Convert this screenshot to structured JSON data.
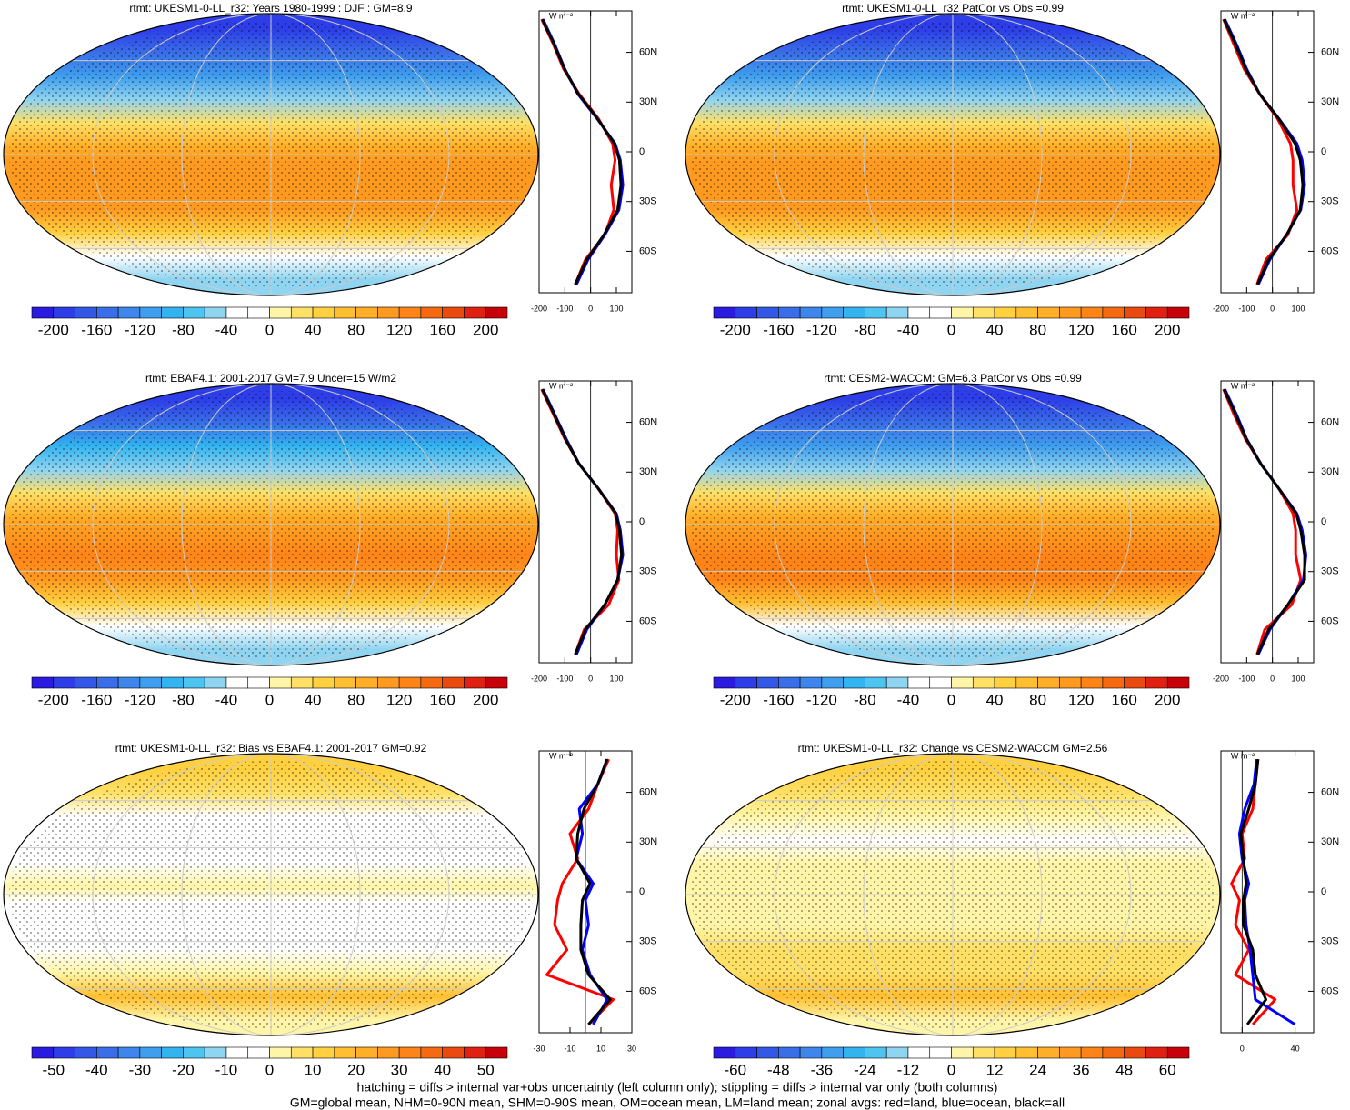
{
  "chart_data": [
    {
      "type": "zonal_map",
      "title": "rtmt: UKESM1-0-LL_r32: Years 1980-1999 : DJF : GM=8.9",
      "colorbar_ticks": [
        -200,
        -160,
        -120,
        -80,
        -40,
        0,
        40,
        80,
        120,
        160,
        200
      ],
      "colorbar_colors": [
        "#2b1be0",
        "#2d3ee8",
        "#3357e6",
        "#3a6ee8",
        "#3f86ec",
        "#3f9eee",
        "#33b4f0",
        "#4ec4f0",
        "#8fd4f0",
        "#ffffff",
        "#ffffff",
        "#fff5a8",
        "#ffe066",
        "#ffd040",
        "#ffbf30",
        "#ffae28",
        "#ff9a20",
        "#ff8418",
        "#f56a10",
        "#ea4a10",
        "#e02010",
        "#c8000a"
      ],
      "unit": "W m⁻²",
      "latitudes": [
        80,
        65,
        50,
        35,
        20,
        5,
        -5,
        -20,
        -35,
        -50,
        -65,
        -80
      ],
      "xlim": [
        -200,
        160
      ],
      "xticks": [
        -200,
        -100,
        0,
        100
      ],
      "ylim": [
        -85,
        85
      ],
      "yticks": [
        {
          "value": 60,
          "label": "60N"
        },
        {
          "value": 30,
          "label": "30N"
        },
        0,
        {
          "value": -30,
          "label": "30S"
        },
        {
          "value": -60,
          "label": "60S"
        }
      ],
      "series": [
        {
          "name": "land",
          "color": "#ff0000",
          "values": [
            -190,
            -145,
            -105,
            -45,
            30,
            85,
            95,
            80,
            90,
            55,
            -20,
            -60
          ]
        },
        {
          "name": "ocean",
          "color": "#0000ff",
          "values": [
            -185,
            -140,
            -100,
            -50,
            25,
            95,
            115,
            125,
            110,
            55,
            -10,
            -55
          ]
        },
        {
          "name": "all",
          "color": "#000000",
          "values": [
            -188,
            -142,
            -102,
            -48,
            27,
            92,
            112,
            118,
            105,
            52,
            -15,
            -60
          ]
        }
      ]
    },
    {
      "type": "zonal_map",
      "title": "rtmt: UKESM1-0-LL_r32 PatCor vs Obs =0.99",
      "colorbar_ticks": [
        -200,
        -160,
        -120,
        -80,
        -40,
        0,
        40,
        80,
        120,
        160,
        200
      ],
      "colorbar_colors": [
        "#2b1be0",
        "#2d3ee8",
        "#3357e6",
        "#3a6ee8",
        "#3f86ec",
        "#3f9eee",
        "#33b4f0",
        "#4ec4f0",
        "#8fd4f0",
        "#ffffff",
        "#ffffff",
        "#fff5a8",
        "#ffe066",
        "#ffd040",
        "#ffbf30",
        "#ffae28",
        "#ff9a20",
        "#ff8418",
        "#f56a10",
        "#ea4a10",
        "#e02010",
        "#c8000a"
      ],
      "unit": "W m⁻²",
      "latitudes": [
        80,
        65,
        50,
        35,
        20,
        5,
        -5,
        -20,
        -35,
        -50,
        -65,
        -80
      ],
      "xlim": [
        -200,
        160
      ],
      "xticks": [
        -200,
        -100,
        0,
        100
      ],
      "ylim": [
        -85,
        85
      ],
      "yticks": [
        {
          "value": 60,
          "label": "60N"
        },
        {
          "value": 30,
          "label": "30N"
        },
        0,
        {
          "value": -30,
          "label": "30S"
        },
        {
          "value": -60,
          "label": "60S"
        }
      ],
      "series": [
        {
          "name": "land",
          "color": "#ff0000",
          "values": [
            -190,
            -150,
            -110,
            -50,
            20,
            70,
            80,
            80,
            95,
            60,
            -25,
            -60
          ]
        },
        {
          "name": "ocean",
          "color": "#0000ff",
          "values": [
            -185,
            -140,
            -100,
            -50,
            25,
            95,
            115,
            125,
            110,
            55,
            -10,
            -55
          ]
        },
        {
          "name": "all",
          "color": "#000000",
          "values": [
            -188,
            -144,
            -104,
            -50,
            24,
            88,
            108,
            118,
            108,
            55,
            -15,
            -58
          ]
        }
      ]
    },
    {
      "type": "zonal_map",
      "title": "rtmt: EBAF4.1: 2001-2017 GM=7.9 Uncer=15 W/m2",
      "colorbar_ticks": [
        -200,
        -160,
        -120,
        -80,
        -40,
        0,
        40,
        80,
        120,
        160,
        200
      ],
      "colorbar_colors": [
        "#2b1be0",
        "#2d3ee8",
        "#3357e6",
        "#3a6ee8",
        "#3f86ec",
        "#3f9eee",
        "#33b4f0",
        "#4ec4f0",
        "#8fd4f0",
        "#ffffff",
        "#ffffff",
        "#fff5a8",
        "#ffe066",
        "#ffd040",
        "#ffbf30",
        "#ffae28",
        "#ff9a20",
        "#ff8418",
        "#f56a10",
        "#ea4a10",
        "#e02010",
        "#c8000a"
      ],
      "unit": "W m⁻²",
      "latitudes": [
        80,
        65,
        50,
        35,
        20,
        5,
        -5,
        -20,
        -35,
        -50,
        -65,
        -80
      ],
      "xlim": [
        -200,
        160
      ],
      "xticks": [
        -200,
        -100,
        0,
        100
      ],
      "ylim": [
        -85,
        85
      ],
      "yticks": [
        {
          "value": 60,
          "label": "60N"
        },
        {
          "value": 30,
          "label": "30N"
        },
        0,
        {
          "value": -30,
          "label": "30S"
        },
        {
          "value": -60,
          "label": "60S"
        }
      ],
      "series": [
        {
          "name": "land",
          "color": "#ff0000",
          "values": [
            -190,
            -145,
            -100,
            -45,
            30,
            95,
            105,
            100,
            110,
            70,
            -25,
            -60
          ]
        },
        {
          "name": "ocean",
          "color": "#0000ff",
          "values": [
            -185,
            -140,
            -95,
            -45,
            30,
            100,
            115,
            125,
            105,
            55,
            -15,
            -55
          ]
        },
        {
          "name": "all",
          "color": "#000000",
          "values": [
            -188,
            -142,
            -98,
            -45,
            30,
            98,
            112,
            120,
            105,
            55,
            -20,
            -60
          ]
        }
      ]
    },
    {
      "type": "zonal_map",
      "title": "rtmt: CESM2-WACCM: GM=6.3 PatCor vs Obs =0.99",
      "colorbar_ticks": [
        -200,
        -160,
        -120,
        -80,
        -40,
        0,
        40,
        80,
        120,
        160,
        200
      ],
      "colorbar_colors": [
        "#2b1be0",
        "#2d3ee8",
        "#3357e6",
        "#3a6ee8",
        "#3f86ec",
        "#3f9eee",
        "#33b4f0",
        "#4ec4f0",
        "#8fd4f0",
        "#ffffff",
        "#ffffff",
        "#fff5a8",
        "#ffe066",
        "#ffd040",
        "#ffbf30",
        "#ffae28",
        "#ff9a20",
        "#ff8418",
        "#f56a10",
        "#ea4a10",
        "#e02010",
        "#c8000a"
      ],
      "unit": "W m⁻²",
      "latitudes": [
        80,
        65,
        50,
        35,
        20,
        5,
        -5,
        -20,
        -35,
        -50,
        -65,
        -80
      ],
      "xlim": [
        -200,
        160
      ],
      "xticks": [
        -200,
        -100,
        0,
        100
      ],
      "ylim": [
        -85,
        85
      ],
      "yticks": [
        {
          "value": 60,
          "label": "60N"
        },
        {
          "value": 30,
          "label": "30N"
        },
        0,
        {
          "value": -30,
          "label": "30S"
        },
        {
          "value": -60,
          "label": "60S"
        }
      ],
      "series": [
        {
          "name": "land",
          "color": "#ff0000",
          "values": [
            -190,
            -150,
            -105,
            -45,
            25,
            80,
            90,
            90,
            110,
            75,
            -30,
            -60
          ]
        },
        {
          "name": "ocean",
          "color": "#0000ff",
          "values": [
            -185,
            -140,
            -100,
            -45,
            25,
            95,
            115,
            130,
            120,
            60,
            -10,
            -55
          ]
        },
        {
          "name": "all",
          "color": "#000000",
          "values": [
            -188,
            -144,
            -102,
            -45,
            25,
            92,
            110,
            125,
            125,
            60,
            -15,
            -58
          ]
        }
      ]
    },
    {
      "type": "zonal_map",
      "title": "rtmt: UKESM1-0-LL_r32: Bias vs EBAF4.1: 2001-2017 GM=0.92",
      "colorbar_ticks": [
        -50,
        -40,
        -30,
        -20,
        -10,
        0,
        10,
        20,
        30,
        40,
        50
      ],
      "colorbar_colors": [
        "#2b1be0",
        "#2d3ee8",
        "#3357e6",
        "#3a6ee8",
        "#3f86ec",
        "#3f9eee",
        "#33b4f0",
        "#4ec4f0",
        "#8fd4f0",
        "#ffffff",
        "#ffffff",
        "#fff5a8",
        "#ffe066",
        "#ffd040",
        "#ffbf30",
        "#ffae28",
        "#ff9a20",
        "#ff8418",
        "#f56a10",
        "#ea4a10",
        "#e02010",
        "#c8000a"
      ],
      "unit": "W m⁻²",
      "latitudes": [
        80,
        65,
        50,
        35,
        20,
        5,
        -5,
        -20,
        -35,
        -50,
        -65,
        -80
      ],
      "xlim": [
        -30,
        30
      ],
      "xticks": [
        -30,
        -10,
        10,
        30
      ],
      "ylim": [
        -85,
        85
      ],
      "yticks": [
        {
          "value": 60,
          "label": "60N"
        },
        {
          "value": 30,
          "label": "30N"
        },
        0,
        {
          "value": -30,
          "label": "30S"
        },
        {
          "value": -60,
          "label": "60S"
        }
      ],
      "series": [
        {
          "name": "land",
          "color": "#ff0000",
          "values": [
            15,
            8,
            2,
            -10,
            -5,
            -15,
            -18,
            -20,
            -12,
            -25,
            18,
            2
          ]
        },
        {
          "name": "ocean",
          "color": "#0000ff",
          "values": [
            14,
            8,
            -4,
            -2,
            -6,
            5,
            0,
            2,
            -2,
            3,
            14,
            5
          ]
        },
        {
          "name": "all",
          "color": "#000000",
          "values": [
            14,
            8,
            -1,
            -5,
            -6,
            3,
            -2,
            -3,
            -3,
            2,
            16,
            2
          ]
        }
      ]
    },
    {
      "type": "zonal_map",
      "title": "rtmt: UKESM1-0-LL_r32: Change vs CESM2-WACCM GM=2.56",
      "colorbar_ticks": [
        -60,
        -48,
        -36,
        -24,
        -12,
        0,
        12,
        24,
        36,
        48,
        60
      ],
      "colorbar_colors": [
        "#2b1be0",
        "#2d3ee8",
        "#3357e6",
        "#3a6ee8",
        "#3f86ec",
        "#3f9eee",
        "#33b4f0",
        "#4ec4f0",
        "#8fd4f0",
        "#ffffff",
        "#ffffff",
        "#fff5a8",
        "#ffe066",
        "#ffd040",
        "#ffbf30",
        "#ffae28",
        "#ff9a20",
        "#ff8418",
        "#f56a10",
        "#ea4a10",
        "#e02010",
        "#c8000a"
      ],
      "unit": "W m⁻²",
      "latitudes": [
        80,
        65,
        50,
        35,
        20,
        5,
        -5,
        -20,
        -35,
        -50,
        -65,
        -80
      ],
      "xlim": [
        -16,
        54
      ],
      "xticks": [
        0,
        40
      ],
      "ylim": [
        -85,
        85
      ],
      "yticks": [
        {
          "value": 60,
          "label": "60N"
        },
        {
          "value": 30,
          "label": "30N"
        },
        0,
        {
          "value": -30,
          "label": "30S"
        },
        {
          "value": -60,
          "label": "60S"
        }
      ],
      "series": [
        {
          "name": "land",
          "color": "#ff0000",
          "values": [
            12,
            10,
            8,
            0,
            2,
            -8,
            -2,
            -5,
            5,
            -5,
            25,
            8
          ]
        },
        {
          "name": "ocean",
          "color": "#0000ff",
          "values": [
            11,
            9,
            2,
            -2,
            0,
            5,
            2,
            3,
            6,
            8,
            10,
            40
          ]
        },
        {
          "name": "all",
          "color": "#000000",
          "values": [
            12,
            10,
            5,
            -1,
            1,
            3,
            1,
            1,
            8,
            10,
            18,
            4
          ]
        }
      ]
    }
  ],
  "notes": [
    "hatching = diffs > internal var+obs uncertainty (left column only); stippling = diffs > internal var only (both columns)",
    "GM=global mean, NHM=0-90N mean, SHM=0-90S mean, OM=ocean mean, LM=land mean; zonal avgs: red=land, blue=ocean, black=all"
  ]
}
